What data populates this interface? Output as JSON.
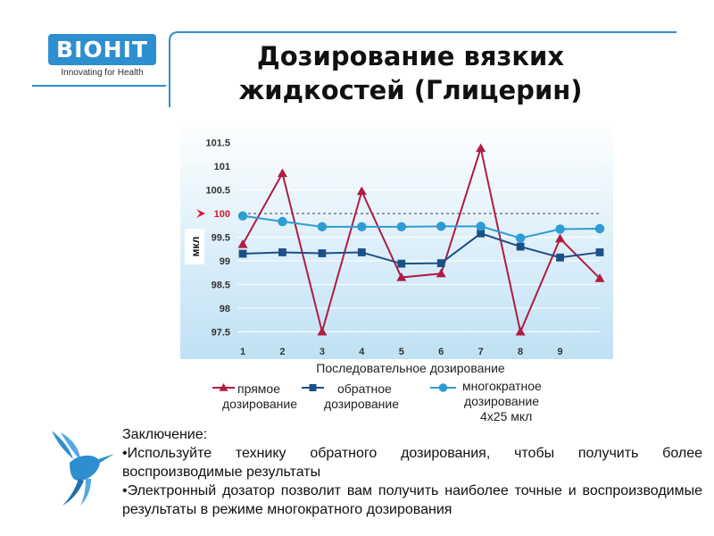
{
  "logo": {
    "name": "BIOHIT",
    "tagline": "Innovating for Health"
  },
  "title": "Дозирование вязких жидкостей (Глицерин)",
  "chart_data": {
    "type": "line",
    "ylabel": "мкл",
    "xlabel": "",
    "ylim": [
      97.3,
      101.7
    ],
    "yticks": [
      97.5,
      98,
      98.5,
      99,
      99.5,
      100,
      100.5,
      101,
      101.5
    ],
    "ytick_labels": [
      "97.5",
      "98",
      "98.5",
      "99",
      "99.5",
      "100",
      "100.5",
      "101",
      "101.5"
    ],
    "xticks": [
      1,
      2,
      3,
      4,
      5,
      6,
      7,
      8,
      9
    ],
    "xtick_labels": [
      "1",
      "2",
      "3",
      "4",
      "5",
      "6",
      "7",
      "8",
      "9"
    ],
    "xlim": [
      1,
      10
    ],
    "reference_line": {
      "value": 100,
      "label": "100",
      "color": "#d9142b"
    },
    "legend_title": "Последовательное дозирование",
    "series": [
      {
        "name": "прямое дозирование",
        "marker": "triangle",
        "color": "#b01c42",
        "x": [
          1,
          2,
          3,
          4,
          5,
          6,
          7,
          8,
          9,
          10
        ],
        "values": [
          99.35,
          100.85,
          97.5,
          100.47,
          98.65,
          98.73,
          101.38,
          97.5,
          99.47,
          98.63
        ]
      },
      {
        "name": "обратное дозирование",
        "marker": "square",
        "color": "#1c4f86",
        "x": [
          1,
          2,
          3,
          4,
          5,
          6,
          7,
          8,
          9,
          10
        ],
        "values": [
          99.15,
          99.18,
          99.16,
          99.18,
          98.94,
          98.95,
          99.58,
          99.3,
          99.07,
          99.18
        ]
      },
      {
        "name": "многократное дозирование 4x25 мкл",
        "marker": "circle",
        "color": "#2f9cd4",
        "x": [
          1,
          2,
          3,
          4,
          5,
          6,
          7,
          8,
          9,
          10
        ],
        "values": [
          99.95,
          99.83,
          99.72,
          99.72,
          99.72,
          99.73,
          99.73,
          99.48,
          99.67,
          99.68
        ]
      }
    ],
    "legend_labels": [
      [
        "прямое",
        "дозирование"
      ],
      [
        "обратное",
        "дозирование"
      ],
      [
        "многократное",
        "дозирование",
        "4x25 мкл"
      ]
    ],
    "colors": {
      "background_top": "#ffffff",
      "background_bottom": "#bfe1f4",
      "grid": "#ffffff"
    }
  },
  "conclusion": {
    "heading": "Заключение:",
    "points": [
      "•Используйте технику обратного дозирования, чтобы получить более воспроизводимые результаты",
      "•Электронный дозатор позволит вам получить наиболее точные и воспроизводимые результаты в режиме многократного дозирования"
    ]
  }
}
